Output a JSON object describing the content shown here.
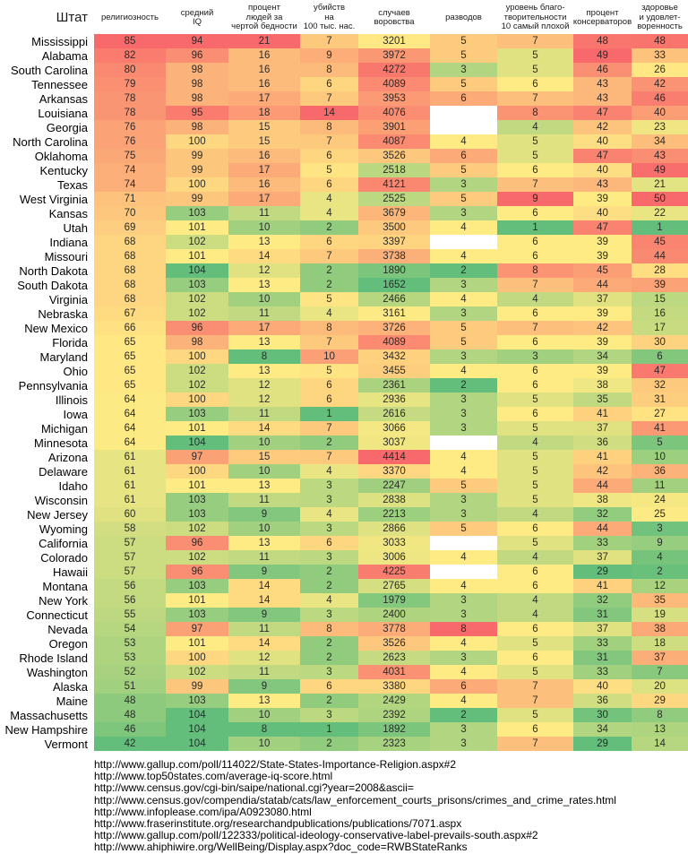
{
  "header": {
    "state_label": "Штат"
  },
  "colors": {
    "scale_good_green": "#63BE7B",
    "scale_mid_yellow": "#FFEB84",
    "scale_bad_red": "#F8696B",
    "blank_cell": "#FFFFFF",
    "background": "#FFFFFF"
  },
  "chart_data": {
    "type": "heatmap",
    "title": "",
    "state_column_label": "Штат",
    "legend_position": "none",
    "grid": false,
    "color_scale": {
      "good": "#63BE7B",
      "mid": "#FFEB84",
      "bad": "#F8696B",
      "midpoint": "50th percentile per column",
      "blank": "#FFFFFF"
    },
    "columns": [
      {
        "key": "religiosity",
        "label": "религиозность",
        "high_is_good": false
      },
      {
        "key": "avg_iq",
        "label": "средний\nIQ",
        "high_is_good": true
      },
      {
        "key": "poverty_pct",
        "label": "процент\nлюдей за\nчертой бедности",
        "high_is_good": false
      },
      {
        "key": "murders",
        "label": "убийств\nна\n100 тыс. нас.",
        "high_is_good": false
      },
      {
        "key": "thefts",
        "label": "случаев\nворовства",
        "high_is_good": false
      },
      {
        "key": "divorces",
        "label": "разводов",
        "high_is_good": false
      },
      {
        "key": "charity_rank",
        "label": "уровень благо-\nтворительности\n10 самый плохой",
        "high_is_good": false
      },
      {
        "key": "conservatives",
        "label": "процент\nконсерваторов",
        "high_is_good": false
      },
      {
        "key": "health",
        "label": "здоровье\nи удовлет-\nворенность",
        "high_is_good": false
      }
    ],
    "rows": [
      {
        "state": "Mississippi",
        "values": [
          85,
          94,
          21,
          7,
          3201,
          5,
          7,
          48,
          48
        ]
      },
      {
        "state": "Alabama",
        "values": [
          82,
          96,
          16,
          9,
          3972,
          5,
          5,
          49,
          33
        ]
      },
      {
        "state": "South Carolina",
        "values": [
          80,
          98,
          16,
          8,
          4272,
          3,
          5,
          46,
          26
        ]
      },
      {
        "state": "Tennessee",
        "values": [
          79,
          98,
          16,
          6,
          4089,
          5,
          6,
          43,
          42
        ]
      },
      {
        "state": "Arkansas",
        "values": [
          78,
          98,
          17,
          7,
          3953,
          6,
          7,
          43,
          46
        ]
      },
      {
        "state": "Louisiana",
        "values": [
          78,
          95,
          18,
          14,
          4076,
          null,
          8,
          47,
          40
        ]
      },
      {
        "state": "Georgia",
        "values": [
          76,
          98,
          15,
          8,
          3901,
          null,
          4,
          42,
          23
        ]
      },
      {
        "state": "North Carolina",
        "values": [
          76,
          100,
          15,
          7,
          4087,
          4,
          5,
          40,
          34
        ]
      },
      {
        "state": "Oklahoma",
        "values": [
          75,
          99,
          16,
          6,
          3526,
          6,
          5,
          47,
          43
        ]
      },
      {
        "state": "Kentucky",
        "values": [
          74,
          99,
          17,
          5,
          2518,
          5,
          6,
          40,
          49
        ]
      },
      {
        "state": "Texas",
        "values": [
          74,
          100,
          16,
          6,
          4121,
          3,
          7,
          43,
          21
        ]
      },
      {
        "state": "West Virginia",
        "values": [
          71,
          99,
          17,
          4,
          2525,
          5,
          9,
          39,
          50
        ]
      },
      {
        "state": "Kansas",
        "values": [
          70,
          103,
          11,
          4,
          3679,
          3,
          6,
          40,
          22
        ]
      },
      {
        "state": "Utah",
        "values": [
          69,
          101,
          10,
          2,
          3500,
          4,
          1,
          47,
          1
        ]
      },
      {
        "state": "Indiana",
        "values": [
          68,
          102,
          13,
          6,
          3397,
          null,
          6,
          39,
          45
        ]
      },
      {
        "state": "Missouri",
        "values": [
          68,
          101,
          14,
          7,
          3738,
          4,
          6,
          39,
          44
        ]
      },
      {
        "state": "North Dakota",
        "values": [
          68,
          104,
          12,
          2,
          1890,
          2,
          8,
          45,
          28
        ]
      },
      {
        "state": "South Dakota",
        "values": [
          68,
          103,
          13,
          2,
          1652,
          3,
          7,
          44,
          39
        ]
      },
      {
        "state": "Virginia",
        "values": [
          68,
          102,
          10,
          5,
          2466,
          4,
          4,
          37,
          15
        ]
      },
      {
        "state": "Nebraska",
        "values": [
          67,
          102,
          11,
          4,
          3161,
          3,
          6,
          39,
          16
        ]
      },
      {
        "state": "New Mexico",
        "values": [
          66,
          96,
          17,
          8,
          3726,
          5,
          7,
          42,
          17
        ]
      },
      {
        "state": "Florida",
        "values": [
          65,
          98,
          13,
          7,
          4089,
          5,
          6,
          39,
          30
        ]
      },
      {
        "state": "Maryland",
        "values": [
          65,
          100,
          8,
          10,
          3432,
          3,
          3,
          34,
          6
        ]
      },
      {
        "state": "Ohio",
        "values": [
          65,
          102,
          13,
          5,
          3455,
          4,
          6,
          39,
          47
        ]
      },
      {
        "state": "Pennsylvania",
        "values": [
          65,
          102,
          12,
          6,
          2361,
          2,
          6,
          38,
          32
        ]
      },
      {
        "state": "Illinois",
        "values": [
          64,
          100,
          12,
          6,
          2936,
          3,
          5,
          35,
          31
        ]
      },
      {
        "state": "Iowa",
        "values": [
          64,
          103,
          11,
          1,
          2616,
          3,
          6,
          41,
          27
        ]
      },
      {
        "state": "Michigan",
        "values": [
          64,
          101,
          14,
          7,
          3066,
          3,
          5,
          37,
          41
        ]
      },
      {
        "state": "Minnesota",
        "values": [
          64,
          104,
          10,
          2,
          3037,
          null,
          4,
          36,
          5
        ]
      },
      {
        "state": "Arizona",
        "values": [
          61,
          97,
          15,
          7,
          4414,
          4,
          5,
          41,
          10
        ]
      },
      {
        "state": "Delaware",
        "values": [
          61,
          100,
          10,
          4,
          3370,
          4,
          5,
          42,
          36
        ]
      },
      {
        "state": "Idaho",
        "values": [
          61,
          101,
          13,
          3,
          2247,
          5,
          5,
          44,
          11
        ]
      },
      {
        "state": "Wisconsin",
        "values": [
          61,
          103,
          11,
          3,
          2838,
          3,
          5,
          38,
          24
        ]
      },
      {
        "state": "New Jersey",
        "values": [
          60,
          103,
          9,
          4,
          2213,
          3,
          4,
          32,
          25
        ]
      },
      {
        "state": "Wyoming",
        "values": [
          58,
          102,
          10,
          3,
          2866,
          5,
          6,
          44,
          3
        ]
      },
      {
        "state": "California",
        "values": [
          57,
          96,
          13,
          6,
          3033,
          null,
          5,
          33,
          9
        ]
      },
      {
        "state": "Colorado",
        "values": [
          57,
          102,
          11,
          3,
          3006,
          4,
          4,
          37,
          4
        ]
      },
      {
        "state": "Hawaii",
        "values": [
          57,
          96,
          9,
          2,
          4225,
          null,
          6,
          29,
          2
        ]
      },
      {
        "state": "Montana",
        "values": [
          56,
          103,
          14,
          2,
          2765,
          4,
          6,
          41,
          12
        ]
      },
      {
        "state": "New York",
        "values": [
          56,
          101,
          14,
          4,
          1979,
          3,
          4,
          32,
          35
        ]
      },
      {
        "state": "Connecticut",
        "values": [
          55,
          103,
          9,
          3,
          2400,
          3,
          4,
          31,
          19
        ]
      },
      {
        "state": "Nevada",
        "values": [
          54,
          97,
          11,
          8,
          3778,
          8,
          6,
          37,
          38
        ]
      },
      {
        "state": "Oregon",
        "values": [
          53,
          101,
          14,
          2,
          3526,
          4,
          5,
          33,
          18
        ]
      },
      {
        "state": "Rhode Island",
        "values": [
          53,
          100,
          12,
          2,
          2623,
          3,
          6,
          31,
          37
        ]
      },
      {
        "state": "Washington",
        "values": [
          52,
          102,
          11,
          3,
          4031,
          4,
          5,
          33,
          7
        ]
      },
      {
        "state": "Alaska",
        "values": [
          51,
          99,
          9,
          6,
          3380,
          6,
          7,
          40,
          20
        ]
      },
      {
        "state": "Maine",
        "values": [
          48,
          103,
          13,
          2,
          2429,
          4,
          7,
          36,
          29
        ]
      },
      {
        "state": "Massachusetts",
        "values": [
          48,
          104,
          10,
          3,
          2392,
          2,
          5,
          30,
          8
        ]
      },
      {
        "state": "New Hampshire",
        "values": [
          46,
          104,
          8,
          1,
          1892,
          3,
          6,
          34,
          13
        ]
      },
      {
        "state": "Vermont",
        "values": [
          42,
          104,
          10,
          2,
          2323,
          3,
          7,
          29,
          14
        ]
      }
    ]
  },
  "sources": [
    "http://www.gallup.com/poll/114022/State-States-Importance-Religion.aspx#2",
    "http://www.top50states.com/average-iq-score.html",
    "http://www.census.gov/cgi-bin/saipe/national.cgi?year=2008&ascii=",
    "http://www.census.gov/compendia/statab/cats/law_enforcement_courts_prisons/crimes_and_crime_rates.html",
    "http://www.infoplease.com/ipa/A0923080.html",
    "http://www.fraserinstitute.org/researchandpublications/publications/7071.aspx",
    "http://www.gallup.com/poll/122333/political-ideology-conservative-label-prevails-south.aspx#2",
    "http://www.ahiphiwire.org/WellBeing/Display.aspx?doc_code=RWBStateRanks"
  ]
}
